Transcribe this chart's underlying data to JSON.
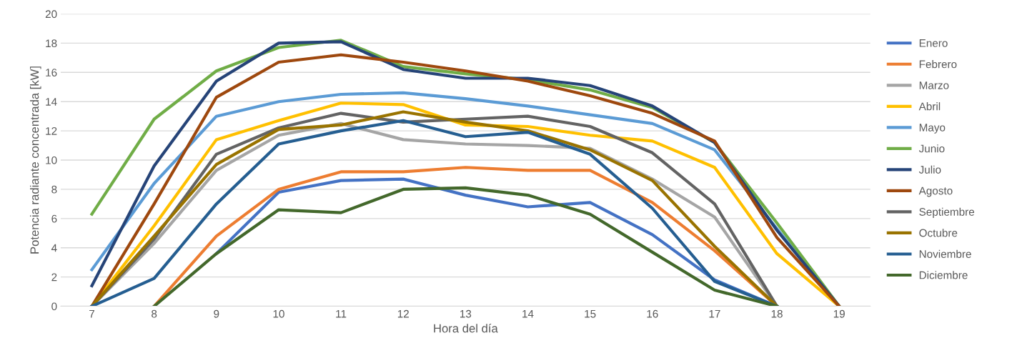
{
  "chart_data": {
    "type": "line",
    "xlabel": "Hora del día",
    "ylabel": "Potencia radiante concentrada [kW]",
    "categories": [
      "7",
      "8",
      "9",
      "10",
      "11",
      "12",
      "13",
      "14",
      "15",
      "16",
      "17",
      "18",
      "19"
    ],
    "ylim": [
      0,
      20
    ],
    "yticks": [
      0,
      2,
      4,
      6,
      8,
      10,
      12,
      14,
      16,
      18,
      20
    ],
    "grid": "y",
    "legend": "right",
    "series": [
      {
        "name": "Enero",
        "color": "#4472c4",
        "values": [
          null,
          null,
          3.6,
          7.8,
          8.6,
          8.7,
          7.6,
          6.8,
          7.1,
          4.9,
          1.8,
          0,
          null
        ]
      },
      {
        "name": "Febrero",
        "color": "#ed7d31",
        "values": [
          null,
          0,
          4.8,
          8.0,
          9.2,
          9.2,
          9.5,
          9.3,
          9.3,
          7.1,
          3.8,
          0,
          null
        ]
      },
      {
        "name": "Marzo",
        "color": "#a5a5a5",
        "values": [
          0,
          4.3,
          9.3,
          11.7,
          12.5,
          11.4,
          11.1,
          11.0,
          10.8,
          8.7,
          6.1,
          0,
          null
        ]
      },
      {
        "name": "Abril",
        "color": "#ffc000",
        "values": [
          0,
          5.5,
          11.4,
          12.7,
          13.9,
          13.8,
          12.4,
          12.3,
          11.7,
          11.3,
          9.5,
          3.6,
          0
        ]
      },
      {
        "name": "Mayo",
        "color": "#5b9bd5",
        "values": [
          2.5,
          8.4,
          13.0,
          14.0,
          14.5,
          14.6,
          14.2,
          13.7,
          13.1,
          12.5,
          10.7,
          5.3,
          0
        ]
      },
      {
        "name": "Junio",
        "color": "#70ad47",
        "values": [
          6.3,
          12.8,
          16.1,
          17.7,
          18.2,
          16.4,
          15.9,
          15.5,
          14.8,
          13.6,
          11.2,
          5.7,
          0
        ]
      },
      {
        "name": "Julio",
        "color": "#264478",
        "values": [
          1.4,
          9.6,
          15.4,
          18.0,
          18.1,
          16.2,
          15.6,
          15.6,
          15.1,
          13.7,
          11.2,
          5.2,
          0
        ]
      },
      {
        "name": "Agosto",
        "color": "#9e480e",
        "values": [
          0,
          7.0,
          14.3,
          16.7,
          17.2,
          16.7,
          16.1,
          15.4,
          14.4,
          13.2,
          11.3,
          4.7,
          0
        ]
      },
      {
        "name": "Septiembre",
        "color": "#636363",
        "values": [
          0,
          4.6,
          10.4,
          12.2,
          13.2,
          12.6,
          12.8,
          13.0,
          12.3,
          10.5,
          7.0,
          0,
          null
        ]
      },
      {
        "name": "Octubre",
        "color": "#997300",
        "values": [
          0,
          4.8,
          9.7,
          12.1,
          12.4,
          13.3,
          12.6,
          12.0,
          10.7,
          8.6,
          4.1,
          0,
          null
        ]
      },
      {
        "name": "Noviembre",
        "color": "#255e91",
        "values": [
          0,
          1.9,
          7.0,
          11.1,
          12.0,
          12.7,
          11.6,
          11.9,
          10.4,
          6.7,
          1.7,
          0,
          null
        ]
      },
      {
        "name": "Diciembre",
        "color": "#43682b",
        "values": [
          null,
          0,
          3.6,
          6.6,
          6.4,
          8.0,
          8.1,
          7.6,
          6.3,
          3.7,
          1.1,
          0,
          null
        ]
      }
    ]
  }
}
